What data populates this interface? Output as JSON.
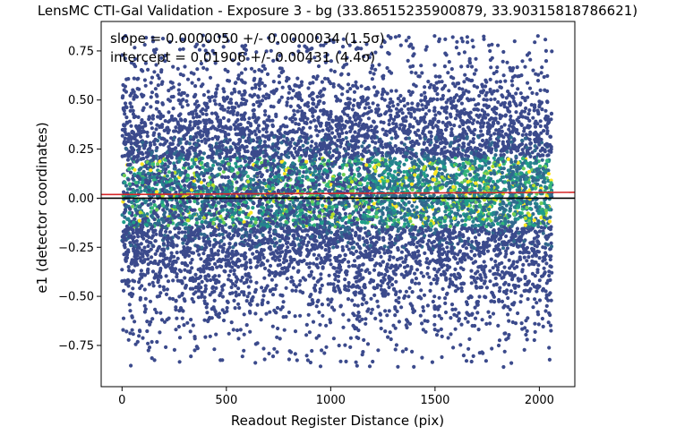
{
  "chart_data": {
    "type": "scatter",
    "title": "LensMC CTI-Gal Validation - Exposure 3 - bg (33.86515235900879, 33.90315818786621)",
    "xlabel": "Readout Register Distance (pix)",
    "ylabel": "e1 (detector coordinates)",
    "xlim": [
      -100,
      2170
    ],
    "ylim": [
      -0.96,
      0.9
    ],
    "x_ticks": [
      0,
      500,
      1000,
      1500,
      2000
    ],
    "x_tick_labels": [
      "0",
      "500",
      "1000",
      "1500",
      "2000"
    ],
    "y_ticks": [
      -0.75,
      -0.5,
      -0.25,
      0.0,
      0.25,
      0.5,
      0.75
    ],
    "y_tick_labels": [
      "−0.75",
      "−0.50",
      "−0.25",
      "0.00",
      "0.25",
      "0.50",
      "0.75"
    ],
    "grid": false,
    "annotations": {
      "slope": "slope = 0.0000050 +/- 0.0000034 (1.5σ)",
      "intercept": "intercept = 0.01906 +/- 0.00431 (4.4σ)"
    },
    "fit_line": {
      "slope": 5e-06,
      "intercept": 0.01906,
      "color": "#d62728"
    },
    "zero_line": {
      "y": 0.0,
      "color": "#000000"
    },
    "scatter": {
      "x_range": [
        0,
        2060
      ],
      "y_center": 0.03,
      "y_spread": 0.32,
      "approx_points": 9000,
      "colormap": "viridis",
      "colors": [
        "#3b4a8c",
        "#31688e",
        "#26828e",
        "#1f9e89",
        "#35b779",
        "#6ece58",
        "#b5de2b",
        "#fde725"
      ]
    }
  }
}
